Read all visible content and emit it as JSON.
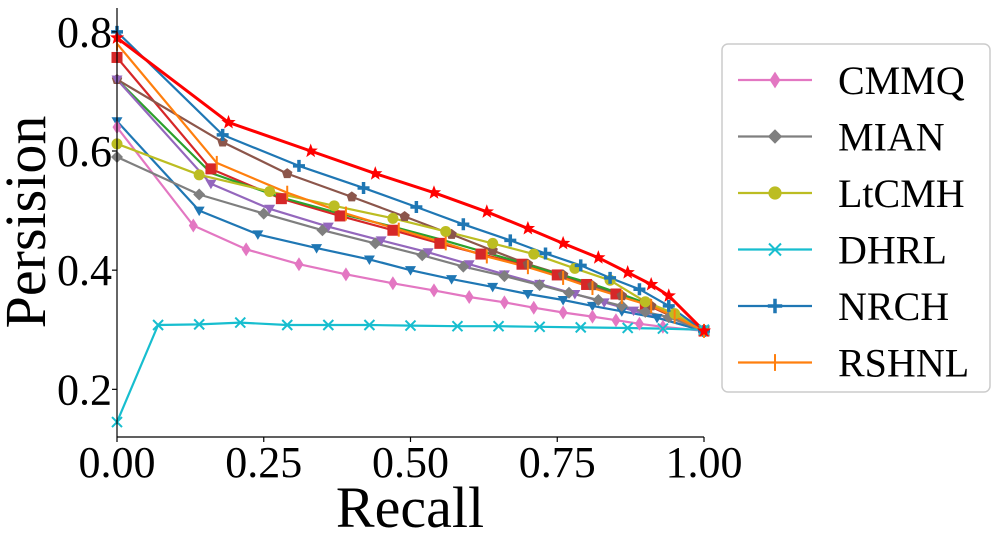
{
  "chart_data": {
    "type": "line",
    "title": "",
    "xlabel": "Recall",
    "ylabel": "Persision",
    "xlim": [
      0,
      1
    ],
    "ylim": [
      0.12,
      0.84
    ],
    "xticks": [
      0,
      0.25,
      0.5,
      0.75,
      1
    ],
    "yticks": [
      0.2,
      0.4,
      0.6,
      0.8
    ],
    "xtick_labels": [
      "0.00",
      "0.25",
      "0.50",
      "0.75",
      "1.00"
    ],
    "ytick_labels": [
      "0.2",
      "0.4",
      "0.6",
      "0.8"
    ],
    "legend_position": "right",
    "series": [
      {
        "name": "CMMQ",
        "color": "#e377c2",
        "marker": "thin_diamond",
        "legend": true,
        "x": [
          0,
          0.13,
          0.22,
          0.31,
          0.39,
          0.47,
          0.54,
          0.6,
          0.66,
          0.71,
          0.76,
          0.81,
          0.85,
          0.89,
          0.93,
          1.0
        ],
        "y": [
          0.64,
          0.475,
          0.435,
          0.41,
          0.393,
          0.378,
          0.366,
          0.355,
          0.346,
          0.337,
          0.329,
          0.322,
          0.316,
          0.31,
          0.305,
          0.298
        ]
      },
      {
        "name": "MIAN",
        "color": "#7f7f7f",
        "marker": "diamond",
        "legend": true,
        "x": [
          0,
          0.14,
          0.25,
          0.35,
          0.44,
          0.52,
          0.59,
          0.66,
          0.72,
          0.77,
          0.82,
          0.86,
          0.9,
          0.94,
          1.0
        ],
        "y": [
          0.59,
          0.527,
          0.495,
          0.467,
          0.445,
          0.425,
          0.406,
          0.39,
          0.375,
          0.362,
          0.35,
          0.34,
          0.33,
          0.321,
          0.298
        ]
      },
      {
        "name": "LtCMH",
        "color": "#bcbd22",
        "marker": "circle",
        "legend": true,
        "x": [
          0,
          0.14,
          0.26,
          0.37,
          0.47,
          0.56,
          0.64,
          0.71,
          0.78,
          0.84,
          0.9,
          0.95,
          1.0
        ],
        "y": [
          0.612,
          0.56,
          0.532,
          0.508,
          0.487,
          0.465,
          0.445,
          0.427,
          0.403,
          0.383,
          0.347,
          0.327,
          0.298
        ]
      },
      {
        "name": "DHRL",
        "color": "#17becf",
        "marker": "x",
        "legend": true,
        "x": [
          0,
          0.07,
          0.14,
          0.21,
          0.29,
          0.36,
          0.43,
          0.5,
          0.58,
          0.65,
          0.72,
          0.79,
          0.87,
          0.93,
          1.0
        ],
        "y": [
          0.145,
          0.308,
          0.309,
          0.312,
          0.308,
          0.308,
          0.308,
          0.307,
          0.306,
          0.306,
          0.305,
          0.304,
          0.303,
          0.302,
          0.3
        ]
      },
      {
        "name": "NRCH",
        "color": "#1f77b4",
        "marker": "plus",
        "legend": true,
        "x": [
          0,
          0.18,
          0.31,
          0.42,
          0.51,
          0.59,
          0.67,
          0.73,
          0.79,
          0.84,
          0.89,
          0.94,
          1.0
        ],
        "y": [
          0.8,
          0.627,
          0.575,
          0.538,
          0.506,
          0.477,
          0.45,
          0.428,
          0.408,
          0.387,
          0.368,
          0.34,
          0.298
        ]
      },
      {
        "name": "RSHNL",
        "color": "#ff7f0e",
        "marker": "vline",
        "legend": true,
        "x": [
          0,
          0.17,
          0.29,
          0.39,
          0.48,
          0.56,
          0.63,
          0.7,
          0.76,
          0.81,
          0.86,
          0.91,
          0.95,
          1.0
        ],
        "y": [
          0.78,
          0.58,
          0.53,
          0.495,
          0.468,
          0.445,
          0.423,
          0.405,
          0.387,
          0.37,
          0.355,
          0.34,
          0.322,
          0.298
        ]
      },
      {
        "name": "",
        "color": "#ff0000",
        "marker": "star",
        "legend": false,
        "x": [
          0,
          0.19,
          0.33,
          0.44,
          0.54,
          0.63,
          0.7,
          0.76,
          0.82,
          0.87,
          0.91,
          0.94,
          1.0
        ],
        "y": [
          0.79,
          0.648,
          0.6,
          0.562,
          0.53,
          0.498,
          0.47,
          0.445,
          0.421,
          0.396,
          0.376,
          0.357,
          0.298
        ]
      },
      {
        "name": "",
        "color": "#d62728",
        "marker": "square",
        "legend": false,
        "x": [
          0,
          0.16,
          0.28,
          0.38,
          0.47,
          0.55,
          0.62,
          0.69,
          0.75,
          0.8,
          0.85,
          0.9,
          1.0
        ],
        "y": [
          0.757,
          0.57,
          0.52,
          0.491,
          0.467,
          0.445,
          0.427,
          0.41,
          0.392,
          0.376,
          0.36,
          0.343,
          0.298
        ]
      },
      {
        "name": "",
        "color": "#8c564b",
        "marker": "pentagon",
        "legend": false,
        "x": [
          0,
          0.18,
          0.29,
          0.4,
          0.49,
          0.57,
          0.64,
          0.7,
          0.76,
          0.81,
          0.86,
          0.91,
          1.0
        ],
        "y": [
          0.72,
          0.615,
          0.562,
          0.523,
          0.49,
          0.46,
          0.433,
          0.41,
          0.392,
          0.374,
          0.357,
          0.34,
          0.298
        ]
      },
      {
        "name": "",
        "color": "#2ca02c",
        "marker": "none",
        "legend": false,
        "x": [
          0,
          0.16,
          0.28,
          0.38,
          0.47,
          0.55,
          0.62,
          0.68,
          0.74,
          0.8,
          0.85,
          0.9,
          1.0
        ],
        "y": [
          0.72,
          0.563,
          0.522,
          0.495,
          0.473,
          0.452,
          0.432,
          0.415,
          0.397,
          0.38,
          0.363,
          0.345,
          0.298
        ]
      },
      {
        "name": "",
        "color": "#9467bd",
        "marker": "triangle_down",
        "legend": false,
        "x": [
          0,
          0.16,
          0.26,
          0.36,
          0.45,
          0.53,
          0.6,
          0.66,
          0.72,
          0.78,
          0.83,
          0.88,
          1.0
        ],
        "y": [
          0.72,
          0.545,
          0.503,
          0.473,
          0.45,
          0.43,
          0.41,
          0.393,
          0.377,
          0.36,
          0.346,
          0.332,
          0.298
        ]
      },
      {
        "name": "",
        "color": "#1f77b4",
        "marker": "triangle_down",
        "legend": false,
        "x": [
          0,
          0.14,
          0.24,
          0.34,
          0.43,
          0.5,
          0.57,
          0.64,
          0.7,
          0.76,
          0.81,
          0.86,
          0.92,
          1.0
        ],
        "y": [
          0.65,
          0.5,
          0.46,
          0.437,
          0.418,
          0.4,
          0.385,
          0.372,
          0.36,
          0.35,
          0.34,
          0.331,
          0.32,
          0.298
        ]
      }
    ]
  }
}
